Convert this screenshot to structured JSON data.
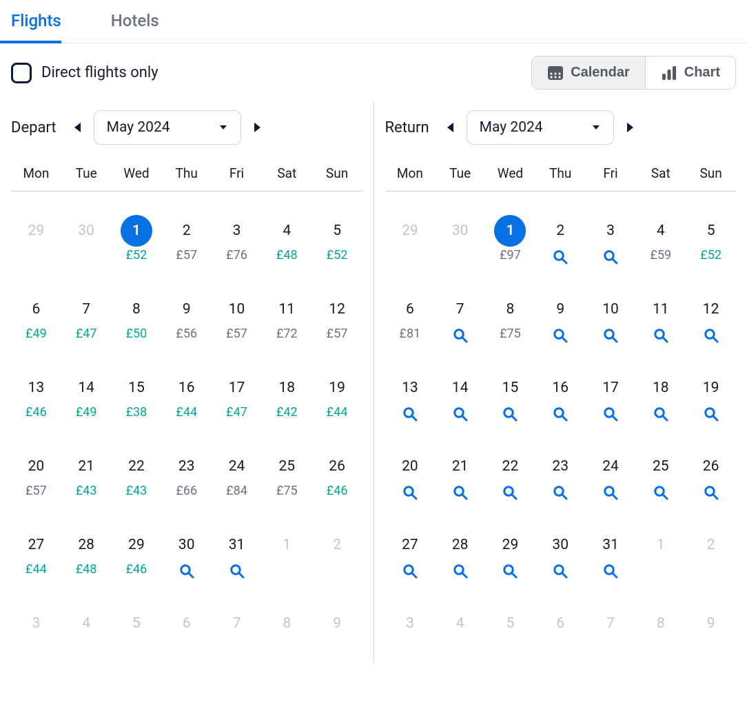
{
  "colors": {
    "accent": "#0770e3",
    "text": "#1a1a2e",
    "muted": "#c3c5cb",
    "price_green": "#00a698",
    "price_grey": "#6b7280",
    "border": "#d1d5db",
    "toggle_active_bg": "#eef0f2"
  },
  "tabs": {
    "flights": "Flights",
    "hotels": "Hotels",
    "active": "flights"
  },
  "toolbar": {
    "direct_label": "Direct flights only",
    "direct_checked": false,
    "calendar_label": "Calendar",
    "chart_label": "Chart",
    "active_view": "calendar"
  },
  "currency_symbol": "£",
  "panels": [
    {
      "key": "depart",
      "title": "Depart",
      "month_label": "May 2024",
      "dow": [
        "Mon",
        "Tue",
        "Wed",
        "Thu",
        "Fri",
        "Sat",
        "Sun"
      ],
      "weeks": [
        [
          {
            "n": "29",
            "muted": true
          },
          {
            "n": "30",
            "muted": true
          },
          {
            "n": "1",
            "selected": true,
            "price": "52",
            "price_color": "green"
          },
          {
            "n": "2",
            "price": "57",
            "price_color": "grey"
          },
          {
            "n": "3",
            "price": "76",
            "price_color": "grey"
          },
          {
            "n": "4",
            "price": "48",
            "price_color": "green"
          },
          {
            "n": "5",
            "price": "52",
            "price_color": "green"
          }
        ],
        [
          {
            "n": "6",
            "price": "49",
            "price_color": "green"
          },
          {
            "n": "7",
            "price": "47",
            "price_color": "green"
          },
          {
            "n": "8",
            "price": "50",
            "price_color": "green"
          },
          {
            "n": "9",
            "price": "56",
            "price_color": "grey"
          },
          {
            "n": "10",
            "price": "57",
            "price_color": "grey"
          },
          {
            "n": "11",
            "price": "72",
            "price_color": "grey"
          },
          {
            "n": "12",
            "price": "57",
            "price_color": "grey"
          }
        ],
        [
          {
            "n": "13",
            "price": "46",
            "price_color": "green"
          },
          {
            "n": "14",
            "price": "49",
            "price_color": "green"
          },
          {
            "n": "15",
            "price": "38",
            "price_color": "green"
          },
          {
            "n": "16",
            "price": "44",
            "price_color": "green"
          },
          {
            "n": "17",
            "price": "47",
            "price_color": "green"
          },
          {
            "n": "18",
            "price": "42",
            "price_color": "green"
          },
          {
            "n": "19",
            "price": "44",
            "price_color": "green"
          }
        ],
        [
          {
            "n": "20",
            "price": "57",
            "price_color": "grey"
          },
          {
            "n": "21",
            "price": "43",
            "price_color": "green"
          },
          {
            "n": "22",
            "price": "43",
            "price_color": "green"
          },
          {
            "n": "23",
            "price": "66",
            "price_color": "grey"
          },
          {
            "n": "24",
            "price": "84",
            "price_color": "grey"
          },
          {
            "n": "25",
            "price": "75",
            "price_color": "grey"
          },
          {
            "n": "26",
            "price": "46",
            "price_color": "green"
          }
        ],
        [
          {
            "n": "27",
            "price": "44",
            "price_color": "green"
          },
          {
            "n": "28",
            "price": "48",
            "price_color": "green"
          },
          {
            "n": "29",
            "price": "46",
            "price_color": "green"
          },
          {
            "n": "30",
            "search": true
          },
          {
            "n": "31",
            "search": true
          },
          {
            "n": "1",
            "muted": true
          },
          {
            "n": "2",
            "muted": true
          }
        ],
        [
          {
            "n": "3",
            "muted": true
          },
          {
            "n": "4",
            "muted": true
          },
          {
            "n": "5",
            "muted": true
          },
          {
            "n": "6",
            "muted": true
          },
          {
            "n": "7",
            "muted": true
          },
          {
            "n": "8",
            "muted": true
          },
          {
            "n": "9",
            "muted": true
          }
        ]
      ]
    },
    {
      "key": "return",
      "title": "Return",
      "month_label": "May 2024",
      "dow": [
        "Mon",
        "Tue",
        "Wed",
        "Thu",
        "Fri",
        "Sat",
        "Sun"
      ],
      "weeks": [
        [
          {
            "n": "29",
            "muted": true
          },
          {
            "n": "30",
            "muted": true
          },
          {
            "n": "1",
            "selected": true,
            "price": "97",
            "price_color": "grey"
          },
          {
            "n": "2",
            "search": true
          },
          {
            "n": "3",
            "search": true
          },
          {
            "n": "4",
            "price": "59",
            "price_color": "grey"
          },
          {
            "n": "5",
            "price": "52",
            "price_color": "green"
          }
        ],
        [
          {
            "n": "6",
            "price": "81",
            "price_color": "grey"
          },
          {
            "n": "7",
            "search": true
          },
          {
            "n": "8",
            "price": "75",
            "price_color": "grey"
          },
          {
            "n": "9",
            "search": true
          },
          {
            "n": "10",
            "search": true
          },
          {
            "n": "11",
            "search": true
          },
          {
            "n": "12",
            "search": true
          }
        ],
        [
          {
            "n": "13",
            "search": true
          },
          {
            "n": "14",
            "search": true
          },
          {
            "n": "15",
            "search": true
          },
          {
            "n": "16",
            "search": true
          },
          {
            "n": "17",
            "search": true
          },
          {
            "n": "18",
            "search": true
          },
          {
            "n": "19",
            "search": true
          }
        ],
        [
          {
            "n": "20",
            "search": true
          },
          {
            "n": "21",
            "search": true
          },
          {
            "n": "22",
            "search": true
          },
          {
            "n": "23",
            "search": true
          },
          {
            "n": "24",
            "search": true
          },
          {
            "n": "25",
            "search": true
          },
          {
            "n": "26",
            "search": true
          }
        ],
        [
          {
            "n": "27",
            "search": true
          },
          {
            "n": "28",
            "search": true
          },
          {
            "n": "29",
            "search": true
          },
          {
            "n": "30",
            "search": true
          },
          {
            "n": "31",
            "search": true
          },
          {
            "n": "1",
            "muted": true
          },
          {
            "n": "2",
            "muted": true
          }
        ],
        [
          {
            "n": "3",
            "muted": true
          },
          {
            "n": "4",
            "muted": true
          },
          {
            "n": "5",
            "muted": true
          },
          {
            "n": "6",
            "muted": true
          },
          {
            "n": "7",
            "muted": true
          },
          {
            "n": "8",
            "muted": true
          },
          {
            "n": "9",
            "muted": true
          }
        ]
      ]
    }
  ]
}
